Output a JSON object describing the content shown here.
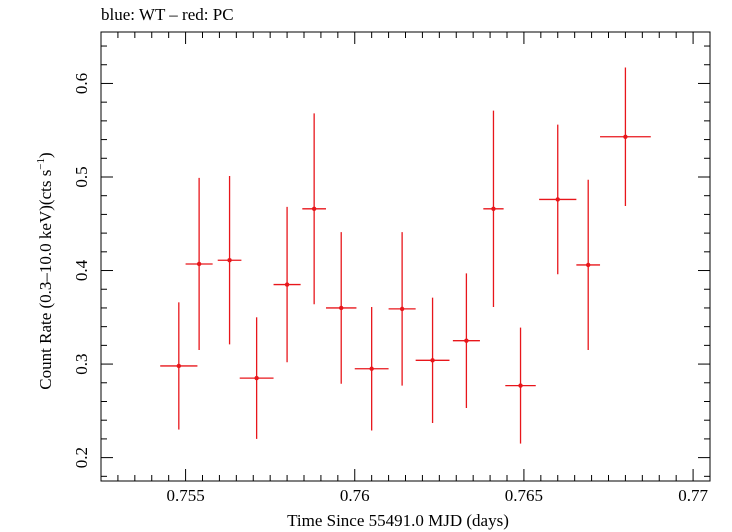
{
  "chart_data": {
    "type": "scatter",
    "title": "blue: WT – red: PC",
    "xlabel": "Time Since 55491.0 MJD (days)",
    "ylabel_main": "Count Rate (0.3–10.0 keV)(cts s",
    "ylabel_sup": "−1",
    "ylabel_close": ")",
    "xlim": [
      0.7525,
      0.7705
    ],
    "ylim": [
      0.175,
      0.655
    ],
    "xticks": [
      0.755,
      0.76,
      0.765,
      0.77
    ],
    "xtick_labels": [
      "0.755",
      "0.76",
      "0.765",
      "0.77"
    ],
    "yticks": [
      0.2,
      0.3,
      0.4,
      0.5,
      0.6
    ],
    "ytick_labels": [
      "0.2",
      "0.3",
      "0.4",
      "0.5",
      "0.6"
    ],
    "grid": false,
    "series": [
      {
        "color": "#e8161b",
        "points": [
          {
            "x": 0.7548,
            "xerr": 0.00055,
            "y": 0.298,
            "yerr": 0.068
          },
          {
            "x": 0.7554,
            "xerr": 0.0004,
            "y": 0.407,
            "yerr": 0.092
          },
          {
            "x": 0.7563,
            "xerr": 0.00035,
            "y": 0.411,
            "yerr": 0.09
          },
          {
            "x": 0.7571,
            "xerr": 0.0005,
            "y": 0.285,
            "yerr": 0.065
          },
          {
            "x": 0.758,
            "xerr": 0.0004,
            "y": 0.385,
            "yerr": 0.083
          },
          {
            "x": 0.7588,
            "xerr": 0.00035,
            "y": 0.466,
            "yerr": 0.102
          },
          {
            "x": 0.7596,
            "xerr": 0.00045,
            "y": 0.36,
            "yerr": 0.081
          },
          {
            "x": 0.7605,
            "xerr": 0.0005,
            "y": 0.295,
            "yerr": 0.066
          },
          {
            "x": 0.7614,
            "xerr": 0.0004,
            "y": 0.359,
            "yerr": 0.082
          },
          {
            "x": 0.7623,
            "xerr": 0.0005,
            "y": 0.304,
            "yerr": 0.067
          },
          {
            "x": 0.7633,
            "xerr": 0.0004,
            "y": 0.325,
            "yerr": 0.072
          },
          {
            "x": 0.7641,
            "xerr": 0.0003,
            "y": 0.466,
            "yerr": 0.105
          },
          {
            "x": 0.7649,
            "xerr": 0.00045,
            "y": 0.277,
            "yerr": 0.062
          },
          {
            "x": 0.766,
            "xerr": 0.00055,
            "y": 0.476,
            "yerr": 0.08
          },
          {
            "x": 0.7669,
            "xerr": 0.00035,
            "y": 0.406,
            "yerr": 0.091
          },
          {
            "x": 0.768,
            "xerr": 0.00075,
            "y": 0.543,
            "yerr": 0.074
          }
        ]
      }
    ]
  }
}
